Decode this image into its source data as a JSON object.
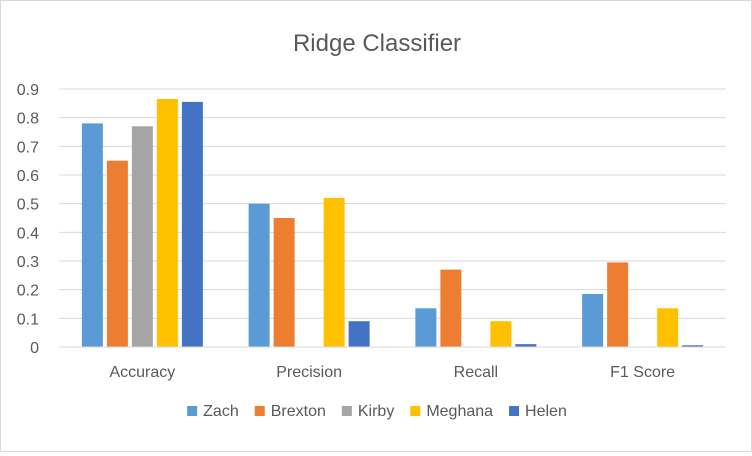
{
  "chart_data": {
    "type": "bar",
    "title": "Ridge Classifier",
    "categories": [
      "Accuracy",
      "Precision",
      "Recall",
      "F1 Score"
    ],
    "series": [
      {
        "name": "Zach",
        "color": "#5b9bd5",
        "values": [
          0.78,
          0.5,
          0.135,
          0.185
        ]
      },
      {
        "name": "Brexton",
        "color": "#ed7d31",
        "values": [
          0.65,
          0.45,
          0.27,
          0.295
        ]
      },
      {
        "name": "Kirby",
        "color": "#a5a5a5",
        "values": [
          0.77,
          0.0,
          0.0,
          0.0
        ]
      },
      {
        "name": "Meghana",
        "color": "#ffc000",
        "values": [
          0.865,
          0.52,
          0.09,
          0.135
        ]
      },
      {
        "name": "Helen",
        "color": "#4472c4",
        "values": [
          0.855,
          0.09,
          0.01,
          0.006
        ]
      }
    ],
    "ylim": [
      0,
      0.9
    ],
    "yticks": [
      "0",
      "0.1",
      "0.2",
      "0.3",
      "0.4",
      "0.5",
      "0.6",
      "0.7",
      "0.8",
      "0.9"
    ],
    "grid": true,
    "legend_position": "bottom",
    "gridline_color": "#d9d9d9",
    "text_color": "#595959"
  }
}
